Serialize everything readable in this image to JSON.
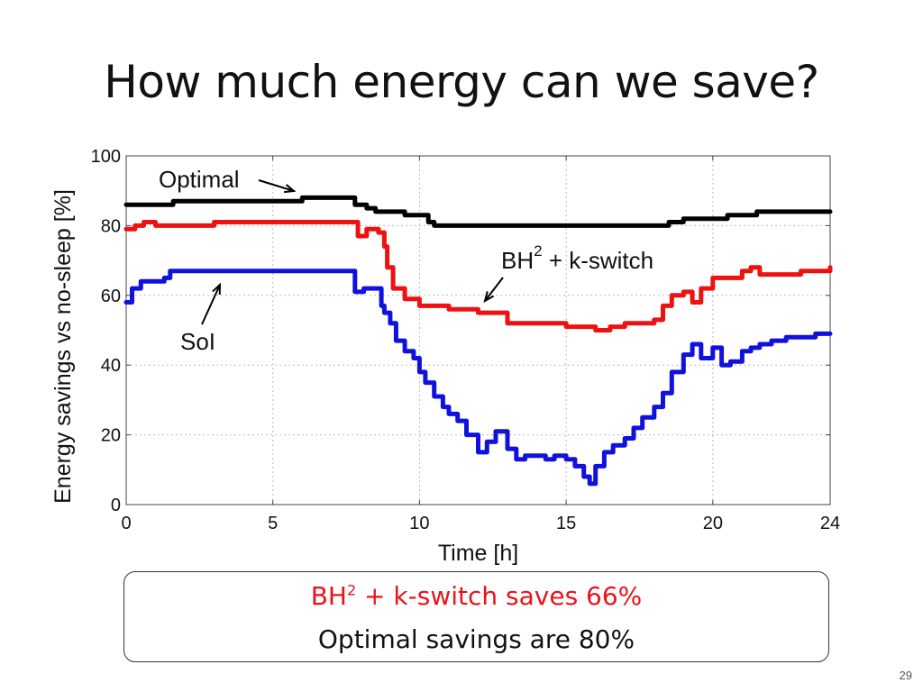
{
  "slide": {
    "title": "How much energy can we save?",
    "summary": {
      "line1_prefix": "BH",
      "line1_sup": "2",
      "line1_suffix": " + k-switch saves 66%",
      "line2": "Optimal savings are 80%"
    },
    "page_number": "29"
  },
  "colors": {
    "optimal": "#000000",
    "bh2_kswitch": "#ee1111",
    "sol": "#1111dd",
    "summary_highlight": "#e8141b"
  },
  "chart_data": {
    "type": "line",
    "title": "",
    "xlabel": "Time [h]",
    "ylabel": "Energy savings vs no-sleep [%]",
    "xlim": [
      0,
      24
    ],
    "ylim": [
      0,
      100
    ],
    "xticks": [
      0,
      5,
      10,
      15,
      20,
      24
    ],
    "yticks": [
      0,
      20,
      40,
      60,
      80,
      100
    ],
    "grid": "dotted",
    "series": [
      {
        "name": "Optimal",
        "color_key": "optimal",
        "x": [
          0,
          1.5,
          1.6,
          3,
          4,
          5,
          6,
          7,
          7.7,
          7.8,
          8.2,
          8.5,
          9,
          9.5,
          10,
          10.3,
          10.5,
          11,
          12,
          13,
          14,
          15,
          16,
          17,
          18,
          18.5,
          19,
          20,
          20.5,
          21,
          21.5,
          22,
          23,
          24
        ],
        "y": [
          86,
          86,
          87,
          87,
          87,
          87,
          88,
          88,
          88,
          86,
          85,
          84,
          84,
          83,
          83,
          81,
          80,
          80,
          80,
          80,
          80,
          80,
          80,
          80,
          80,
          81,
          82,
          82,
          83,
          83,
          84,
          84,
          84,
          84
        ]
      },
      {
        "name": "BH2 + k-switch",
        "color_key": "bh2_kswitch",
        "x": [
          0,
          0.3,
          0.6,
          1,
          1.5,
          3,
          5,
          7,
          7.7,
          7.9,
          8.2,
          8.6,
          8.8,
          8.9,
          9.1,
          9.5,
          10,
          10.5,
          11,
          12,
          12.5,
          13,
          14,
          15,
          15.5,
          16,
          16.5,
          17,
          18,
          18.3,
          18.6,
          19,
          19.3,
          19.6,
          20,
          20.5,
          21,
          21.3,
          21.6,
          22,
          23,
          24
        ],
        "y": [
          79,
          80,
          81,
          80,
          80,
          81,
          81,
          81,
          81,
          77,
          79,
          78,
          74,
          68,
          62,
          59,
          57,
          57,
          56,
          55,
          55,
          52,
          52,
          51,
          51,
          50,
          51,
          52,
          53,
          57,
          60,
          61,
          58,
          62,
          65,
          65,
          67,
          68,
          66,
          66,
          67,
          68
        ]
      },
      {
        "name": "SoI",
        "color_key": "sol",
        "x": [
          0,
          0.2,
          0.5,
          1,
          1.3,
          1.5,
          3,
          5,
          7,
          7.7,
          7.8,
          8.1,
          8.4,
          8.7,
          8.8,
          9,
          9.2,
          9.5,
          9.8,
          10,
          10.2,
          10.5,
          10.8,
          11,
          11.3,
          11.6,
          12,
          12.3,
          12.6,
          13,
          13.3,
          13.6,
          14,
          14.3,
          14.6,
          15,
          15.3,
          15.6,
          15.8,
          16,
          16.3,
          16.6,
          17,
          17.3,
          17.6,
          18,
          18.3,
          18.6,
          19,
          19.3,
          19.6,
          20,
          20.3,
          20.6,
          21,
          21.3,
          21.6,
          22,
          22.5,
          23,
          23.5,
          24
        ],
        "y": [
          58,
          62,
          64,
          64,
          65,
          67,
          67,
          67,
          67,
          67,
          61,
          62,
          62,
          57,
          55,
          52,
          47,
          44,
          42,
          38,
          35,
          31,
          28,
          26,
          24,
          20,
          15,
          18,
          21,
          16,
          13,
          14,
          14,
          13,
          14,
          13,
          11,
          8,
          6,
          11,
          15,
          17,
          19,
          22,
          25,
          28,
          32,
          38,
          43,
          46,
          42,
          45,
          40,
          41,
          44,
          45,
          46,
          47,
          48,
          48,
          49,
          49
        ]
      }
    ],
    "annotations": [
      {
        "text": "Optimal",
        "target_series": "Optimal"
      },
      {
        "text": "BH",
        "sup": "2",
        "suffix": " + k-switch",
        "target_series": "BH2 + k-switch"
      },
      {
        "text": "SoI",
        "target_series": "SoI"
      }
    ]
  }
}
